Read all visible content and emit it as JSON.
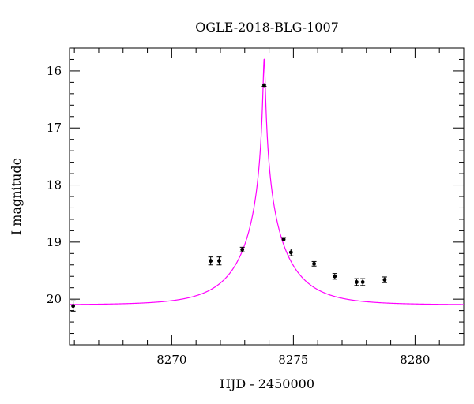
{
  "chart_data": {
    "type": "scatter",
    "title": "OGLE-2018-BLG-1007",
    "xlabel": "HJD - 2450000",
    "ylabel": "I magnitude",
    "xlim": [
      8265.8,
      8282
    ],
    "ylim": [
      20.8,
      15.6
    ],
    "y_inverted": true,
    "x_ticks": [
      8270,
      8275,
      8280
    ],
    "y_ticks": [
      16,
      17,
      18,
      19,
      20
    ],
    "x_minor_step": 1,
    "y_minor_step": 0.2,
    "grid": false,
    "series": [
      {
        "x": [
          8265.95,
          8271.6,
          8271.95,
          8272.9,
          8273.8,
          8274.6,
          8274.9,
          8275.85,
          8276.7,
          8277.6,
          8277.85,
          8278.75
        ],
        "y": [
          20.12,
          19.33,
          19.33,
          19.13,
          16.25,
          18.95,
          19.18,
          19.38,
          19.6,
          19.7,
          19.7,
          19.66
        ],
        "yerr": [
          0.09,
          0.07,
          0.07,
          0.04,
          0.02,
          0.03,
          0.06,
          0.04,
          0.05,
          0.06,
          0.06,
          0.05
        ],
        "color": "#000000"
      }
    ],
    "model": {
      "color": "#ff00ff",
      "t0": 8273.8,
      "u0": 0.0187,
      "tE": 2.0,
      "I_base": 20.1,
      "x_range": [
        8265.8,
        8282
      ]
    }
  }
}
